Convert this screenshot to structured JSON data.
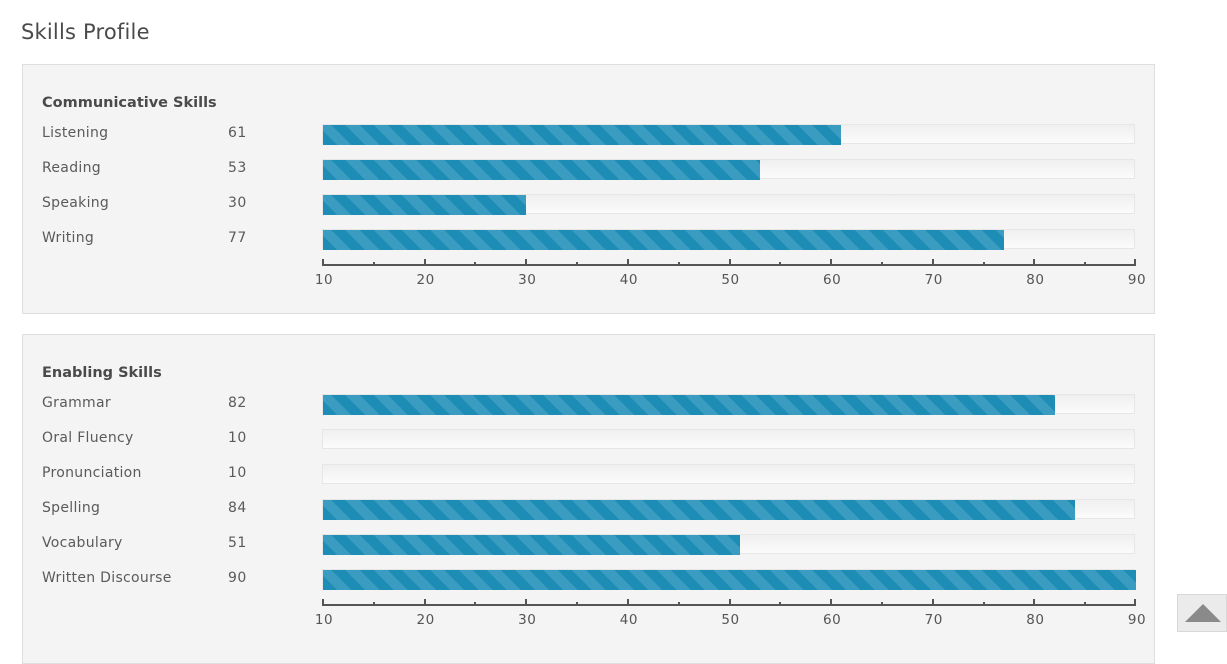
{
  "page": {
    "title": "Skills Profile"
  },
  "sections": [
    {
      "id": "communicative",
      "title": "Communicative Skills",
      "skills": [
        {
          "label": "Listening",
          "score": 61
        },
        {
          "label": "Reading",
          "score": 53
        },
        {
          "label": "Speaking",
          "score": 30
        },
        {
          "label": "Writing",
          "score": 77
        }
      ]
    },
    {
      "id": "enabling",
      "title": "Enabling Skills",
      "skills": [
        {
          "label": "Grammar",
          "score": 82
        },
        {
          "label": "Oral Fluency",
          "score": 10
        },
        {
          "label": "Pronunciation",
          "score": 10
        },
        {
          "label": "Spelling",
          "score": 84
        },
        {
          "label": "Vocabulary",
          "score": 51
        },
        {
          "label": "Written Discourse",
          "score": 90
        }
      ]
    }
  ],
  "chart_data": {
    "type": "bar",
    "orientation": "horizontal",
    "xlim": [
      10,
      90
    ],
    "ticks": [
      10,
      20,
      30,
      40,
      50,
      60,
      70,
      80,
      90
    ],
    "minor_ticks": [
      15,
      25,
      35,
      45,
      55,
      65,
      75,
      85
    ],
    "bar_color": "#1e8db5",
    "bar_stripe_color": "#3b9cc1"
  },
  "scroll_top": {
    "icon": "arrow-up-icon"
  }
}
